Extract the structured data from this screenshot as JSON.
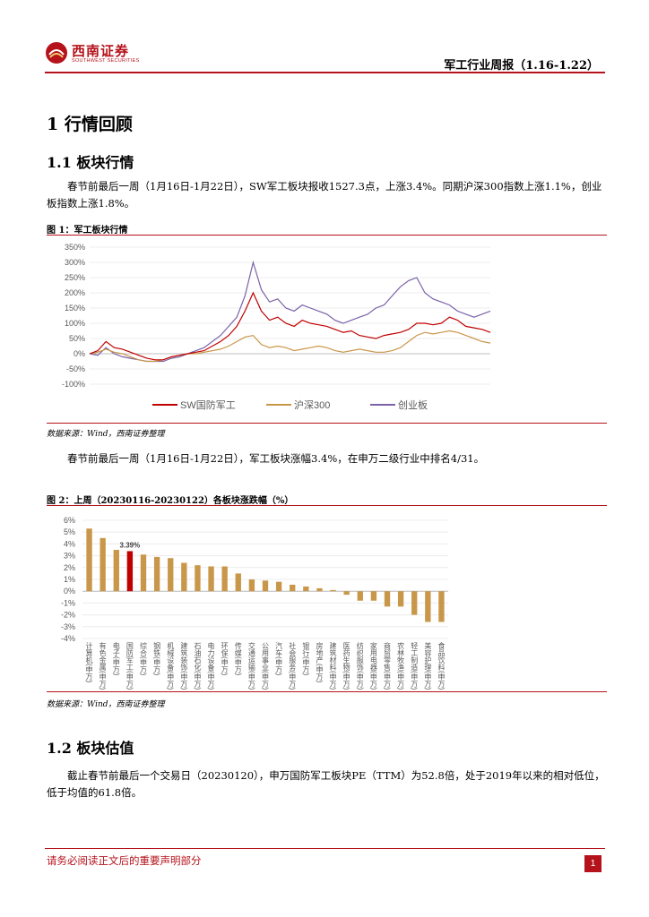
{
  "header": {
    "logo_cn": "西南证券",
    "logo_en": "SOUTHWEST SECURITIES",
    "report_title": "军工行业周报（1.16-1.22）"
  },
  "section1": {
    "title": "1 行情回顾"
  },
  "section1_1": {
    "title": "1.1 板块行情",
    "para": "春节前最后一周（1月16日-1月22日），SW军工板块报收1527.3点，上涨3.4%。同期沪深300指数上涨1.1%，创业板指数上涨1.8%。"
  },
  "fig1": {
    "title": "图 1：军工板块行情",
    "source": "数据来源：Wind，西南证券整理"
  },
  "para2": "春节前最后一周（1月16日-1月22日），军工板块涨幅3.4%，在申万二级行业中排名4/31。",
  "fig2": {
    "title": "图 2：上周（20230116-20230122）各板块涨跌幅（%）",
    "source": "数据来源：Wind，西南证券整理"
  },
  "section1_2": {
    "title": "1.2 板块估值",
    "para": "截止春节前最后一个交易日（20230120），申万国防军工板块PE（TTM）为52.8倍，处于2019年以来的相对低位，低于均值的61.8倍。"
  },
  "footer": {
    "disclaimer": "请务必阅读正文后的重要声明部分",
    "page": "1"
  },
  "colors": {
    "brand": "#b5121b",
    "bar": "#c9974a",
    "highlight": "#c00000",
    "hs300": "#c9974a",
    "cyb": "#7b62a8",
    "sw": "#c00000"
  },
  "chart_data": [
    {
      "type": "line",
      "title": "",
      "xlabel": "",
      "ylabel": "",
      "ylim": [
        -100,
        350
      ],
      "yticks": [
        "-100%",
        "-50%",
        "0%",
        "50%",
        "100%",
        "150%",
        "200%",
        "250%",
        "300%",
        "350%"
      ],
      "legend_position": "bottom",
      "series": [
        {
          "name": "SW国防军工",
          "color": "#c00000",
          "values": [
            0,
            10,
            40,
            20,
            15,
            5,
            -5,
            -15,
            -20,
            -20,
            -10,
            -5,
            0,
            5,
            10,
            25,
            40,
            60,
            90,
            140,
            200,
            140,
            110,
            120,
            100,
            90,
            110,
            100,
            95,
            90,
            80,
            70,
            75,
            60,
            55,
            50,
            60,
            65,
            70,
            80,
            100,
            100,
            95,
            100,
            120,
            110,
            90,
            85,
            80,
            70
          ]
        },
        {
          "name": "沪深300",
          "color": "#c9974a",
          "values": [
            0,
            5,
            15,
            5,
            0,
            -10,
            -20,
            -25,
            -25,
            -20,
            -10,
            -5,
            0,
            0,
            5,
            10,
            15,
            25,
            40,
            55,
            60,
            30,
            20,
            25,
            20,
            10,
            15,
            20,
            25,
            20,
            10,
            5,
            10,
            15,
            10,
            5,
            5,
            10,
            20,
            40,
            60,
            70,
            65,
            70,
            75,
            70,
            60,
            50,
            40,
            35
          ]
        },
        {
          "name": "创业板",
          "color": "#7b62a8",
          "values": [
            0,
            -5,
            20,
            0,
            -10,
            -15,
            -20,
            -25,
            -25,
            -25,
            -15,
            -10,
            0,
            10,
            20,
            40,
            60,
            90,
            120,
            190,
            300,
            210,
            170,
            180,
            150,
            140,
            160,
            150,
            140,
            130,
            110,
            100,
            110,
            120,
            130,
            150,
            160,
            190,
            220,
            240,
            250,
            200,
            180,
            170,
            160,
            140,
            130,
            120,
            130,
            140
          ]
        }
      ]
    },
    {
      "type": "bar",
      "title": "",
      "ylim": [
        -4,
        6
      ],
      "yticks": [
        "6%",
        "5%",
        "4%",
        "3%",
        "2%",
        "1%",
        "0%",
        "-1%",
        "-2%",
        "-3%",
        "-4%"
      ],
      "highlight_label": "3.39%",
      "categories": [
        "计算机(申万)",
        "有色金属(申万)",
        "电子(申万)",
        "国防军工(申万)",
        "综合(申万)",
        "钢铁(申万)",
        "机械设备(申万)",
        "建筑装饰(申万)",
        "石油石化(申万)",
        "电力设备(申万)",
        "环保(申万)",
        "传媒(申万)",
        "交通运输(申万)",
        "公用事业(申万)",
        "汽车(申万)",
        "社会服务(申万)",
        "银行(申万)",
        "房地产(申万)",
        "建筑材料(申万)",
        "医药生物(申万)",
        "纺织服饰(申万)",
        "家用电器(申万)",
        "商贸零售(申万)",
        "农林牧渔(申万)",
        "轻工制造(申万)",
        "美容护理(申万)",
        "食品饮料(申万)"
      ],
      "values": [
        5.3,
        4.5,
        3.5,
        3.39,
        3.1,
        2.9,
        2.8,
        2.4,
        2.2,
        2.1,
        2.1,
        1.5,
        1.0,
        0.9,
        0.8,
        0.55,
        0.4,
        0.25,
        0.1,
        -0.3,
        -0.8,
        -0.8,
        -1.3,
        -1.3,
        -2.0,
        -2.6,
        -2.6
      ]
    }
  ]
}
